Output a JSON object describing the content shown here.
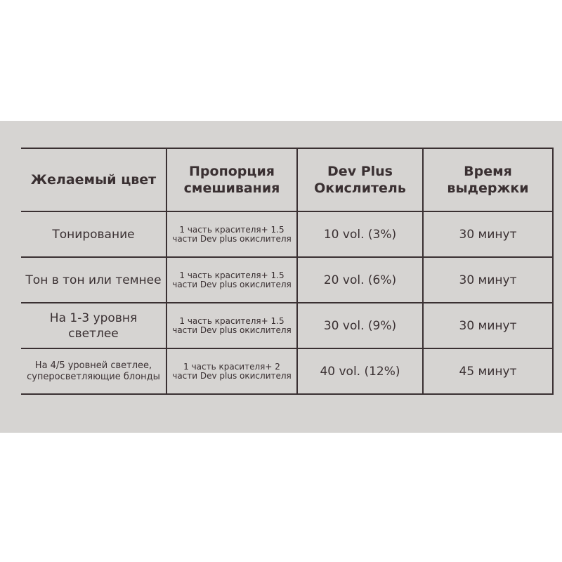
{
  "headers": [
    "Желаемый цвет",
    "Пропорция смешивания",
    "Dev Plus Окислитель",
    "Время выдержки"
  ],
  "rows": [
    {
      "color": "Тонирование",
      "ratio": "1 часть красителя+ 1.5 части Dev plus окислителя",
      "developer": "10 vol. (3%)",
      "time": "30 минут"
    },
    {
      "color": "Тон в тон или темнее",
      "ratio": "1 часть красителя+ 1.5 части Dev plus окислителя",
      "developer": "20 vol. (6%)",
      "time": "30 минут"
    },
    {
      "color": "На 1-3 уровня светлее",
      "ratio": "1 часть красителя+ 1.5 части Dev plus окислителя",
      "developer": "30 vol. (9%)",
      "time": "30 минут"
    },
    {
      "color": "На 4/5 уровней светлее, суперосветляющие блонды",
      "ratio": "1 часть красителя+ 2 части Dev plus окислителя",
      "developer": "40 vol. (12%)",
      "time": "45 минут"
    }
  ]
}
